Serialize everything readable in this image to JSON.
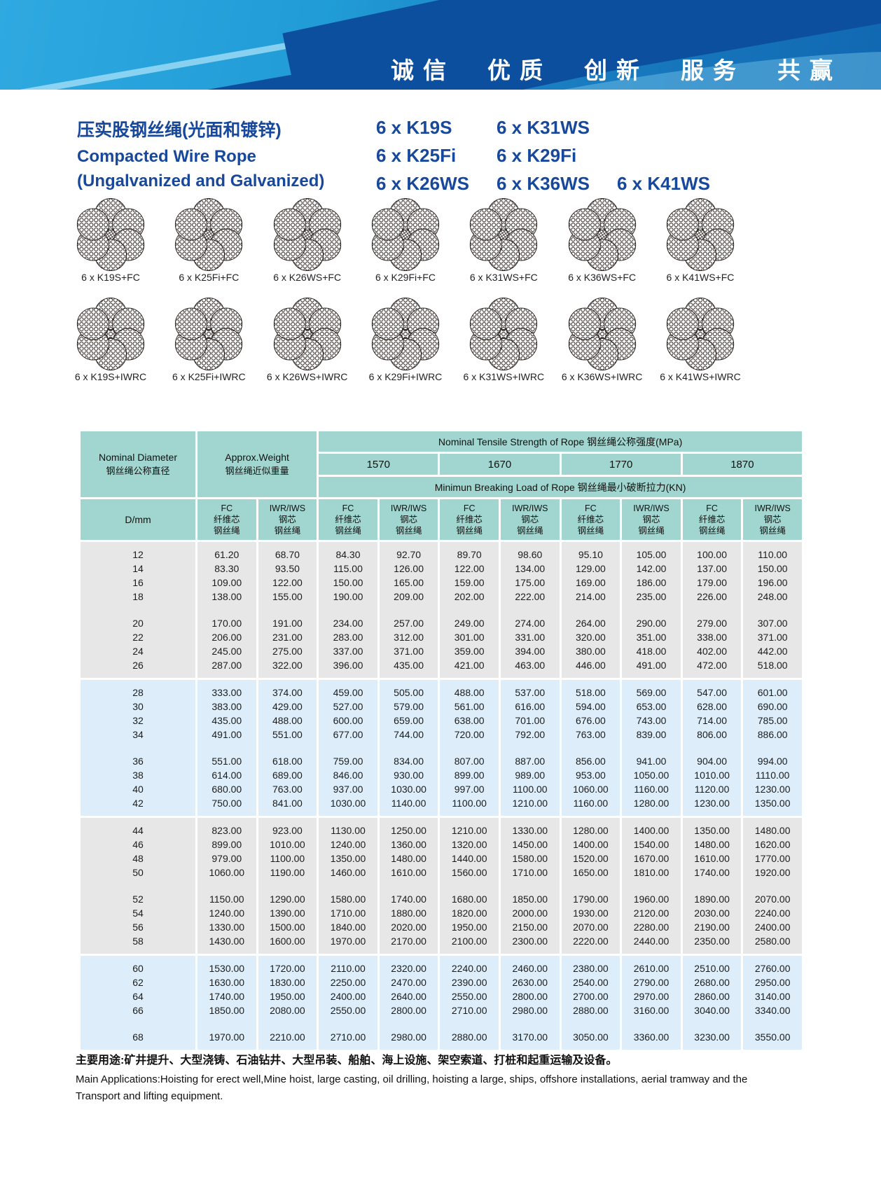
{
  "colors": {
    "banner_blue": "#1E8ECD",
    "banner_dark_swoosh": "#0D4F9F",
    "accent_navy": "#17489C",
    "table_header_teal": "#A0D6CF",
    "row_gray": "#E7E7E7",
    "row_blue": "#DDEEFA"
  },
  "banner": {
    "slogan_words": [
      "诚信",
      "优质",
      "创新",
      "服务",
      "共赢"
    ]
  },
  "title": {
    "zh": "压实股钢丝绳(光面和镀锌)",
    "en_line1": "Compacted Wire Rope",
    "en_line2": "(Ungalvanized and Galvanized)"
  },
  "models": {
    "rows": [
      [
        "6 x K19S",
        "6 x K31WS"
      ],
      [
        "6 x K25Fi",
        "6 x K29Fi"
      ],
      [
        "6 x K26WS",
        "6 x K36WS",
        "6 x K41WS"
      ]
    ]
  },
  "rope_sections": {
    "fc": [
      "6 x K19S+FC",
      "6 x K25Fi+FC",
      "6 x K26WS+FC",
      "6 x K29Fi+FC",
      "6 x K31WS+FC",
      "6 x K36WS+FC",
      "6 x K41WS+FC"
    ],
    "iwrc": [
      "6 x K19S+IWRC",
      "6 x K25Fi+IWRC",
      "6 x K26WS+IWRC",
      "6 x K29Fi+IWRC",
      "6 x K31WS+IWRC",
      "6 x K36WS+IWRC",
      "6 x K41WS+IWRC"
    ]
  },
  "table": {
    "header": {
      "nominal_diameter_en": "Nominal Diameter",
      "nominal_diameter_zh": "钢丝绳公称直径",
      "approx_weight_en": "Approx.Weight",
      "approx_weight_zh": "钢丝绳近似重量",
      "tensile_title": "Nominal Tensile Strength of Rope  钢丝绳公称强度(MPa)",
      "strengths": [
        "1570",
        "1670",
        "1770",
        "1870"
      ],
      "breaking_title": "Minimun Breaking Load of Rope  钢丝绳最小破断拉力(KN)",
      "d_mm": "D/mm",
      "fc_lines": [
        "FC",
        "纤维芯",
        "钢丝绳"
      ],
      "iwr_lines": [
        "IWR/IWS",
        "钢芯",
        "钢丝绳"
      ]
    },
    "blocks": [
      {
        "shade": "gray",
        "rows": [
          {
            "d": "12",
            "v": [
              "61.20",
              "68.70",
              "84.30",
              "92.70",
              "89.70",
              "98.60",
              "95.10",
              "105.00",
              "100.00",
              "110.00"
            ]
          },
          {
            "d": "14",
            "v": [
              "83.30",
              "93.50",
              "115.00",
              "126.00",
              "122.00",
              "134.00",
              "129.00",
              "142.00",
              "137.00",
              "150.00"
            ]
          },
          {
            "d": "16",
            "v": [
              "109.00",
              "122.00",
              "150.00",
              "165.00",
              "159.00",
              "175.00",
              "169.00",
              "186.00",
              "179.00",
              "196.00"
            ]
          },
          {
            "d": "18",
            "v": [
              "138.00",
              "155.00",
              "190.00",
              "209.00",
              "202.00",
              "222.00",
              "214.00",
              "235.00",
              "226.00",
              "248.00"
            ]
          },
          {
            "gap": true
          },
          {
            "d": "20",
            "v": [
              "170.00",
              "191.00",
              "234.00",
              "257.00",
              "249.00",
              "274.00",
              "264.00",
              "290.00",
              "279.00",
              "307.00"
            ]
          },
          {
            "d": "22",
            "v": [
              "206.00",
              "231.00",
              "283.00",
              "312.00",
              "301.00",
              "331.00",
              "320.00",
              "351.00",
              "338.00",
              "371.00"
            ]
          },
          {
            "d": "24",
            "v": [
              "245.00",
              "275.00",
              "337.00",
              "371.00",
              "359.00",
              "394.00",
              "380.00",
              "418.00",
              "402.00",
              "442.00"
            ]
          },
          {
            "d": "26",
            "v": [
              "287.00",
              "322.00",
              "396.00",
              "435.00",
              "421.00",
              "463.00",
              "446.00",
              "491.00",
              "472.00",
              "518.00"
            ]
          }
        ]
      },
      {
        "shade": "blue",
        "rows": [
          {
            "d": "28",
            "v": [
              "333.00",
              "374.00",
              "459.00",
              "505.00",
              "488.00",
              "537.00",
              "518.00",
              "569.00",
              "547.00",
              "601.00"
            ]
          },
          {
            "d": "30",
            "v": [
              "383.00",
              "429.00",
              "527.00",
              "579.00",
              "561.00",
              "616.00",
              "594.00",
              "653.00",
              "628.00",
              "690.00"
            ]
          },
          {
            "d": "32",
            "v": [
              "435.00",
              "488.00",
              "600.00",
              "659.00",
              "638.00",
              "701.00",
              "676.00",
              "743.00",
              "714.00",
              "785.00"
            ]
          },
          {
            "d": "34",
            "v": [
              "491.00",
              "551.00",
              "677.00",
              "744.00",
              "720.00",
              "792.00",
              "763.00",
              "839.00",
              "806.00",
              "886.00"
            ]
          },
          {
            "gap": true
          },
          {
            "d": "36",
            "v": [
              "551.00",
              "618.00",
              "759.00",
              "834.00",
              "807.00",
              "887.00",
              "856.00",
              "941.00",
              "904.00",
              "994.00"
            ]
          },
          {
            "d": "38",
            "v": [
              "614.00",
              "689.00",
              "846.00",
              "930.00",
              "899.00",
              "989.00",
              "953.00",
              "1050.00",
              "1010.00",
              "1110.00"
            ]
          },
          {
            "d": "40",
            "v": [
              "680.00",
              "763.00",
              "937.00",
              "1030.00",
              "997.00",
              "1100.00",
              "1060.00",
              "1160.00",
              "1120.00",
              "1230.00"
            ]
          },
          {
            "d": "42",
            "v": [
              "750.00",
              "841.00",
              "1030.00",
              "1140.00",
              "1100.00",
              "1210.00",
              "1160.00",
              "1280.00",
              "1230.00",
              "1350.00"
            ]
          }
        ]
      },
      {
        "shade": "gray",
        "rows": [
          {
            "d": "44",
            "v": [
              "823.00",
              "923.00",
              "1130.00",
              "1250.00",
              "1210.00",
              "1330.00",
              "1280.00",
              "1400.00",
              "1350.00",
              "1480.00"
            ]
          },
          {
            "d": "46",
            "v": [
              "899.00",
              "1010.00",
              "1240.00",
              "1360.00",
              "1320.00",
              "1450.00",
              "1400.00",
              "1540.00",
              "1480.00",
              "1620.00"
            ]
          },
          {
            "d": "48",
            "v": [
              "979.00",
              "1100.00",
              "1350.00",
              "1480.00",
              "1440.00",
              "1580.00",
              "1520.00",
              "1670.00",
              "1610.00",
              "1770.00"
            ]
          },
          {
            "d": "50",
            "v": [
              "1060.00",
              "1190.00",
              "1460.00",
              "1610.00",
              "1560.00",
              "1710.00",
              "1650.00",
              "1810.00",
              "1740.00",
              "1920.00"
            ]
          },
          {
            "gap": true
          },
          {
            "d": "52",
            "v": [
              "1150.00",
              "1290.00",
              "1580.00",
              "1740.00",
              "1680.00",
              "1850.00",
              "1790.00",
              "1960.00",
              "1890.00",
              "2070.00"
            ]
          },
          {
            "d": "54",
            "v": [
              "1240.00",
              "1390.00",
              "1710.00",
              "1880.00",
              "1820.00",
              "2000.00",
              "1930.00",
              "2120.00",
              "2030.00",
              "2240.00"
            ]
          },
          {
            "d": "56",
            "v": [
              "1330.00",
              "1500.00",
              "1840.00",
              "2020.00",
              "1950.00",
              "2150.00",
              "2070.00",
              "2280.00",
              "2190.00",
              "2400.00"
            ]
          },
          {
            "d": "58",
            "v": [
              "1430.00",
              "1600.00",
              "1970.00",
              "2170.00",
              "2100.00",
              "2300.00",
              "2220.00",
              "2440.00",
              "2350.00",
              "2580.00"
            ]
          }
        ]
      },
      {
        "shade": "blue",
        "rows": [
          {
            "d": "60",
            "v": [
              "1530.00",
              "1720.00",
              "2110.00",
              "2320.00",
              "2240.00",
              "2460.00",
              "2380.00",
              "2610.00",
              "2510.00",
              "2760.00"
            ]
          },
          {
            "d": "62",
            "v": [
              "1630.00",
              "1830.00",
              "2250.00",
              "2470.00",
              "2390.00",
              "2630.00",
              "2540.00",
              "2790.00",
              "2680.00",
              "2950.00"
            ]
          },
          {
            "d": "64",
            "v": [
              "1740.00",
              "1950.00",
              "2400.00",
              "2640.00",
              "2550.00",
              "2800.00",
              "2700.00",
              "2970.00",
              "2860.00",
              "3140.00"
            ]
          },
          {
            "d": "66",
            "v": [
              "1850.00",
              "2080.00",
              "2550.00",
              "2800.00",
              "2710.00",
              "2980.00",
              "2880.00",
              "3160.00",
              "3040.00",
              "3340.00"
            ]
          },
          {
            "gap": true
          },
          {
            "d": "68",
            "v": [
              "1970.00",
              "2210.00",
              "2710.00",
              "2980.00",
              "2880.00",
              "3170.00",
              "3050.00",
              "3360.00",
              "3230.00",
              "3550.00"
            ]
          }
        ]
      }
    ]
  },
  "footer": {
    "zh": "主要用途:矿井提升、大型浇铸、石油钻井、大型吊装、船舶、海上设施、架空索道、打桩和起重运输及设备。",
    "en": "Main Applications:Hoisting for erect well,Mine hoist, large casting, oil drilling, hoisting a large, ships, offshore installations, aerial tramway and the Transport and lifting equipment."
  }
}
